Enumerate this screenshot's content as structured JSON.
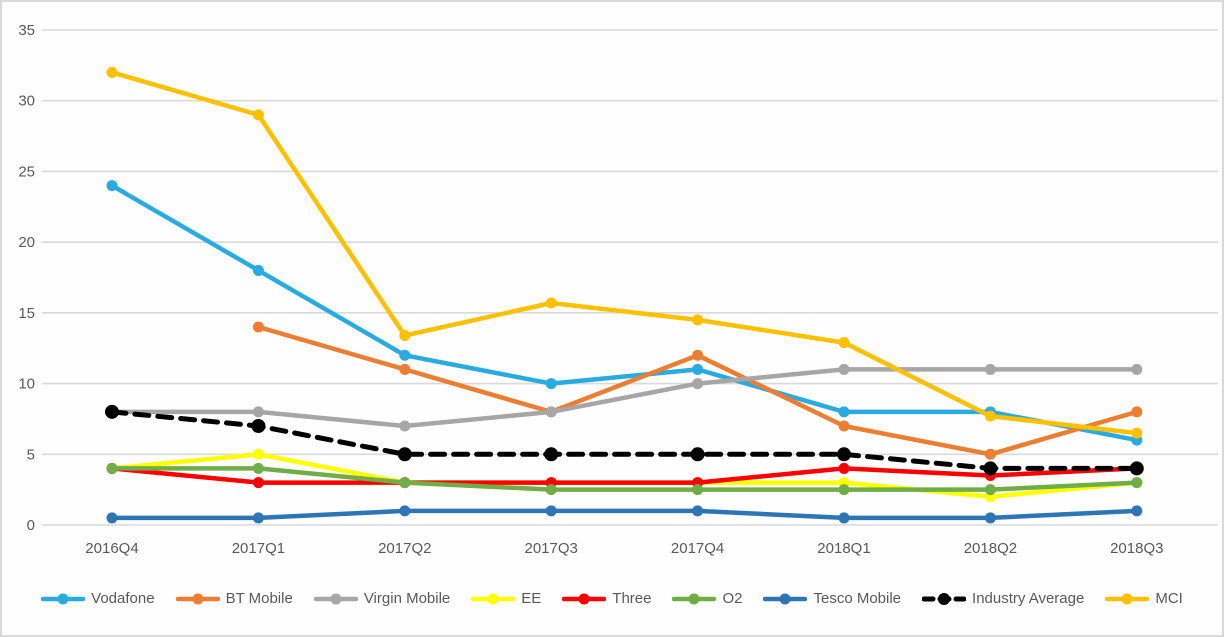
{
  "chart_data": {
    "type": "line",
    "title": "",
    "xlabel": "",
    "ylabel": "",
    "categories": [
      "2016Q4",
      "2017Q1",
      "2017Q2",
      "2017Q3",
      "2017Q4",
      "2018Q1",
      "2018Q2",
      "2018Q3"
    ],
    "y_ticks": [
      0,
      5,
      10,
      15,
      20,
      25,
      30,
      35
    ],
    "ylim": [
      0,
      35
    ],
    "grid": true,
    "legend_position": "bottom",
    "series": [
      {
        "name": "Vodafone",
        "color": "#29ABE2",
        "dashed": false,
        "values": [
          24,
          18,
          12,
          10,
          11,
          8,
          8,
          6
        ]
      },
      {
        "name": "BT Mobile",
        "color": "#ED7D31",
        "dashed": false,
        "values": [
          null,
          14,
          11,
          8,
          12,
          7,
          5,
          8
        ]
      },
      {
        "name": "Virgin Mobile",
        "color": "#A6A6A6",
        "dashed": false,
        "values": [
          8,
          8,
          7,
          8,
          10,
          11,
          11,
          11
        ]
      },
      {
        "name": "EE",
        "color": "#FFFF00",
        "dashed": false,
        "values": [
          4,
          5,
          3,
          3,
          3,
          3,
          2,
          3
        ]
      },
      {
        "name": "Three",
        "color": "#FF0000",
        "dashed": false,
        "values": [
          4,
          3,
          3,
          3,
          3,
          4,
          3.5,
          4
        ]
      },
      {
        "name": "O2",
        "color": "#70AD47",
        "dashed": false,
        "values": [
          4,
          4,
          3,
          2.5,
          2.5,
          2.5,
          2.5,
          3
        ]
      },
      {
        "name": "Tesco Mobile",
        "color": "#2E75B6",
        "dashed": false,
        "values": [
          0.5,
          0.5,
          1,
          1,
          1,
          0.5,
          0.5,
          1
        ]
      },
      {
        "name": "Industry Average",
        "color": "#000000",
        "dashed": true,
        "values": [
          8,
          7,
          5,
          5,
          5,
          5,
          4,
          4
        ]
      },
      {
        "name": "MCI",
        "color": "#FFC000",
        "dashed": false,
        "values": [
          32,
          29,
          13.4,
          15.7,
          14.5,
          12.9,
          7.7,
          6.5
        ]
      }
    ]
  },
  "colors": {
    "grid": "#D9D9D9",
    "axis_text": "#595959",
    "frame_border": "#D9D9D9",
    "background": "#FEFEFE"
  }
}
